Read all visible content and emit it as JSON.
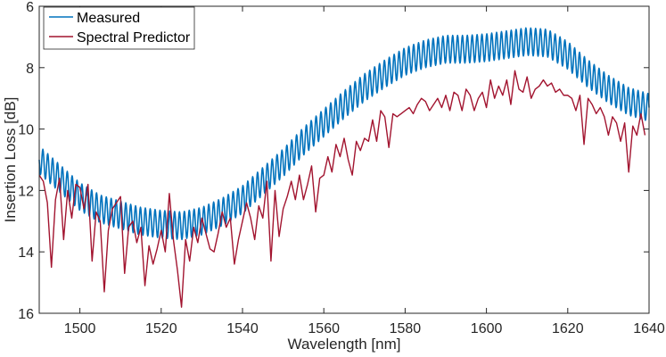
{
  "chart_data": {
    "type": "line",
    "title": "",
    "xlabel": "Wavelength [nm]",
    "ylabel": "Insertion Loss [dB]",
    "xlim": [
      1490,
      1640
    ],
    "ylim": [
      6,
      16
    ],
    "y_reversed": true,
    "xticks": [
      1500,
      1520,
      1540,
      1560,
      1580,
      1600,
      1620,
      1640
    ],
    "yticks": [
      6,
      8,
      10,
      12,
      14,
      16
    ],
    "legend": {
      "location": "top-left",
      "entries": [
        "Measured",
        "Spectral Predictor"
      ]
    },
    "series": [
      {
        "name": "Measured",
        "color": "#0072BD",
        "note": "smooth envelope; rendered with fine oscillatory ripple of ~0.45 dB amplitude",
        "ripple_amplitude_db": 0.45,
        "ripple_period_nm": 1.2,
        "x": [
          1490,
          1495,
          1500,
          1505,
          1510,
          1515,
          1520,
          1525,
          1530,
          1535,
          1540,
          1545,
          1550,
          1555,
          1560,
          1565,
          1570,
          1575,
          1580,
          1585,
          1590,
          1595,
          1600,
          1605,
          1610,
          1615,
          1620,
          1625,
          1630,
          1635,
          1640
        ],
        "y": [
          11.0,
          11.6,
          12.2,
          12.6,
          12.8,
          13.0,
          13.1,
          13.15,
          13.0,
          12.7,
          12.3,
          11.7,
          11.1,
          10.4,
          9.8,
          9.2,
          8.65,
          8.2,
          7.8,
          7.55,
          7.4,
          7.4,
          7.35,
          7.25,
          7.15,
          7.2,
          7.6,
          8.2,
          8.7,
          9.1,
          9.3
        ]
      },
      {
        "name": "Spectral Predictor",
        "color": "#A2142F",
        "x": [
          1490,
          1491,
          1492,
          1493,
          1494,
          1495,
          1496,
          1497,
          1498,
          1499,
          1500,
          1501,
          1502,
          1503,
          1504,
          1505,
          1506,
          1507,
          1508,
          1509,
          1510,
          1511,
          1512,
          1513,
          1514,
          1515,
          1516,
          1517,
          1518,
          1519,
          1520,
          1521,
          1522,
          1523,
          1524,
          1525,
          1526,
          1527,
          1528,
          1529,
          1530,
          1531,
          1532,
          1533,
          1534,
          1535,
          1536,
          1537,
          1538,
          1539,
          1540,
          1541,
          1542,
          1543,
          1544,
          1545,
          1546,
          1547,
          1548,
          1549,
          1550,
          1551,
          1552,
          1553,
          1554,
          1555,
          1556,
          1557,
          1558,
          1559,
          1560,
          1561,
          1562,
          1563,
          1564,
          1565,
          1566,
          1567,
          1568,
          1569,
          1570,
          1571,
          1572,
          1573,
          1574,
          1575,
          1576,
          1577,
          1578,
          1579,
          1580,
          1581,
          1582,
          1583,
          1584,
          1585,
          1586,
          1587,
          1588,
          1589,
          1590,
          1591,
          1592,
          1593,
          1594,
          1595,
          1596,
          1597,
          1598,
          1599,
          1600,
          1601,
          1602,
          1603,
          1604,
          1605,
          1606,
          1607,
          1608,
          1609,
          1610,
          1611,
          1612,
          1613,
          1614,
          1615,
          1616,
          1617,
          1618,
          1619,
          1620,
          1621,
          1622,
          1623,
          1624,
          1625,
          1626,
          1627,
          1628,
          1629,
          1630,
          1631,
          1632,
          1633,
          1634,
          1635,
          1636,
          1637,
          1638,
          1639
        ],
        "y": [
          11.5,
          11.7,
          12.4,
          14.5,
          12.3,
          11.6,
          13.6,
          12.0,
          12.9,
          11.8,
          11.9,
          12.6,
          11.8,
          14.3,
          12.7,
          13.0,
          15.3,
          13.3,
          12.6,
          12.4,
          12.2,
          14.7,
          13.2,
          13.0,
          13.7,
          13.2,
          15.1,
          13.8,
          14.4,
          13.9,
          13.3,
          14.0,
          12.1,
          13.6,
          14.6,
          15.8,
          13.6,
          14.3,
          13.2,
          13.7,
          12.9,
          13.4,
          13.9,
          14.0,
          13.4,
          12.7,
          13.2,
          12.9,
          14.4,
          13.6,
          13.0,
          12.4,
          12.9,
          13.6,
          12.5,
          12.9,
          11.7,
          14.3,
          12.0,
          13.5,
          12.6,
          12.2,
          11.7,
          12.3,
          11.5,
          12.3,
          11.8,
          11.2,
          12.7,
          11.6,
          11.5,
          10.9,
          11.4,
          10.5,
          10.9,
          10.3,
          11.0,
          11.5,
          10.4,
          10.7,
          10.3,
          10.4,
          9.7,
          10.4,
          9.4,
          9.6,
          10.6,
          9.5,
          9.6,
          9.5,
          9.4,
          9.3,
          9.5,
          9.2,
          9.0,
          9.1,
          9.4,
          9.2,
          9.0,
          9.3,
          8.9,
          9.4,
          8.8,
          8.9,
          9.4,
          8.7,
          8.9,
          9.4,
          9.0,
          8.8,
          9.3,
          8.4,
          9.0,
          8.6,
          8.9,
          8.4,
          9.2,
          8.1,
          8.7,
          8.8,
          8.3,
          9.0,
          8.7,
          8.6,
          8.4,
          8.6,
          8.5,
          8.8,
          8.7,
          8.9,
          8.9,
          9.0,
          9.4,
          8.9,
          10.5,
          9.0,
          9.2,
          9.5,
          9.3,
          9.6,
          10.2,
          9.6,
          9.8,
          10.4,
          9.8,
          11.4,
          9.9,
          10.2,
          9.5,
          10.2
        ]
      }
    ]
  }
}
